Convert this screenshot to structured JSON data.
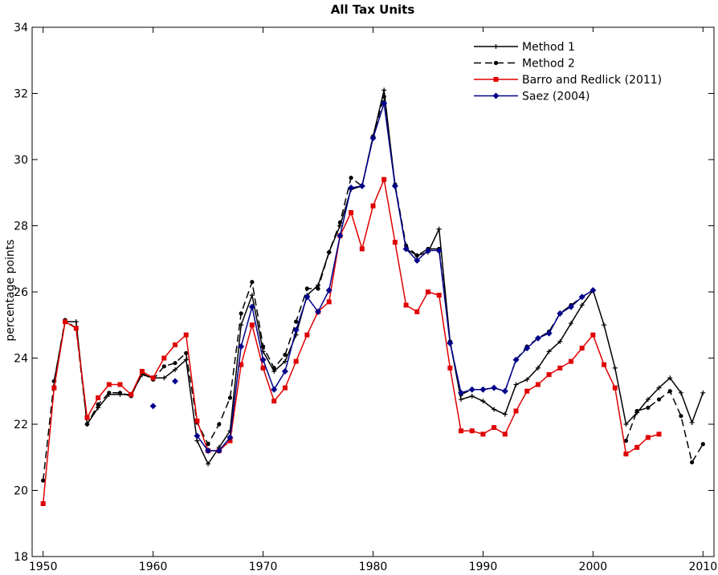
{
  "chart_data": {
    "type": "line",
    "title": "All Tax Units",
    "xlabel": "",
    "ylabel": "percentage points",
    "xlim": [
      1949,
      2011
    ],
    "ylim": [
      18,
      34
    ],
    "xticks": [
      1950,
      1960,
      1970,
      1980,
      1990,
      2000,
      2010
    ],
    "yticks": [
      18,
      20,
      22,
      24,
      26,
      28,
      30,
      32,
      34
    ],
    "grid": false,
    "legend_position": "top-right",
    "series": [
      {
        "name": "Method 1",
        "color": "#000000",
        "dash": "solid",
        "marker": "plus",
        "points": [
          [
            1951,
            23.3
          ],
          [
            1952,
            25.1
          ],
          [
            1953,
            25.1
          ],
          [
            1954,
            22.0
          ],
          [
            1955,
            22.5
          ],
          [
            1956,
            22.9
          ],
          [
            1957,
            22.9
          ],
          [
            1958,
            22.9
          ],
          [
            1959,
            23.5
          ],
          [
            1960,
            23.4
          ],
          [
            1961,
            23.4
          ],
          [
            1962,
            23.65
          ],
          [
            1963,
            23.95
          ],
          [
            1964,
            21.5
          ],
          [
            1965,
            20.8
          ],
          [
            1966,
            21.3
          ],
          [
            1967,
            21.8
          ],
          [
            1968,
            25.0
          ],
          [
            1969,
            25.9
          ],
          [
            1970,
            24.2
          ],
          [
            1971,
            23.6
          ],
          [
            1972,
            23.9
          ],
          [
            1973,
            24.7
          ],
          [
            1974,
            25.9
          ],
          [
            1975,
            26.2
          ],
          [
            1976,
            27.2
          ],
          [
            1977,
            28.0
          ],
          [
            1978,
            29.1
          ],
          [
            1979,
            29.2
          ],
          [
            1980,
            30.7
          ],
          [
            1981,
            32.1
          ],
          [
            1982,
            29.2
          ],
          [
            1983,
            27.3
          ],
          [
            1984,
            27.1
          ],
          [
            1985,
            27.2
          ],
          [
            1986,
            27.9
          ],
          [
            1987,
            24.5
          ],
          [
            1988,
            22.75
          ],
          [
            1989,
            22.85
          ],
          [
            1990,
            22.7
          ],
          [
            1991,
            22.45
          ],
          [
            1992,
            22.3
          ],
          [
            1993,
            23.2
          ],
          [
            1994,
            23.35
          ],
          [
            1995,
            23.7
          ],
          [
            1996,
            24.2
          ],
          [
            1997,
            24.5
          ],
          [
            1998,
            25.05
          ],
          [
            1999,
            25.6
          ],
          [
            2000,
            26.05
          ],
          [
            2001,
            25.0
          ],
          [
            2002,
            23.7
          ],
          [
            2003,
            22.0
          ],
          [
            2004,
            22.35
          ],
          [
            2005,
            22.75
          ],
          [
            2006,
            23.1
          ],
          [
            2007,
            23.4
          ],
          [
            2008,
            22.95
          ],
          [
            2009,
            22.05
          ],
          [
            2010,
            22.95
          ]
        ]
      },
      {
        "name": "Method 2",
        "color": "#000000",
        "dash": "dashed",
        "marker": "dot",
        "points": [
          [
            1950,
            20.3
          ],
          [
            1951,
            23.3
          ],
          [
            1952,
            25.15
          ],
          [
            1953,
            24.9
          ],
          [
            1954,
            22.0
          ],
          [
            1955,
            22.6
          ],
          [
            1956,
            22.95
          ],
          [
            1957,
            22.95
          ],
          [
            1958,
            22.85
          ],
          [
            1959,
            23.55
          ],
          [
            1960,
            23.35
          ],
          [
            1961,
            23.75
          ],
          [
            1962,
            23.85
          ],
          [
            1963,
            24.15
          ],
          [
            1964,
            22.05
          ],
          [
            1965,
            21.4
          ],
          [
            1966,
            22.0
          ],
          [
            1967,
            22.8
          ],
          [
            1968,
            25.35
          ],
          [
            1969,
            26.3
          ],
          [
            1970,
            24.35
          ],
          [
            1971,
            23.7
          ],
          [
            1972,
            24.1
          ],
          [
            1973,
            25.1
          ],
          [
            1974,
            26.1
          ],
          [
            1975,
            26.1
          ],
          [
            1976,
            27.2
          ],
          [
            1977,
            28.1
          ],
          [
            1978,
            29.45
          ],
          [
            1979,
            29.2
          ],
          [
            1980,
            30.7
          ],
          [
            1981,
            31.9
          ],
          [
            1982,
            29.25
          ],
          [
            1983,
            27.4
          ],
          [
            1984,
            27.1
          ],
          [
            1985,
            27.3
          ],
          [
            1986,
            27.3
          ],
          [
            1987,
            24.5
          ],
          [
            1988,
            22.9
          ],
          [
            1989,
            23.05
          ],
          [
            1990,
            23.05
          ],
          [
            1991,
            23.1
          ],
          [
            1992,
            23.0
          ],
          [
            1993,
            23.95
          ],
          [
            1994,
            24.35
          ],
          [
            1995,
            24.6
          ],
          [
            1996,
            24.8
          ],
          [
            1997,
            25.35
          ],
          [
            1998,
            25.6
          ],
          [
            1999,
            25.85
          ],
          [
            2000,
            26.05
          ],
          [
            2003,
            21.5
          ],
          [
            2004,
            22.4
          ],
          [
            2005,
            22.5
          ],
          [
            2006,
            22.75
          ],
          [
            2007,
            23.0
          ],
          [
            2008,
            22.25
          ],
          [
            2009,
            20.85
          ],
          [
            2010,
            21.4
          ]
        ]
      },
      {
        "name": "Barro and Redlick (2011)",
        "color": "#e00000",
        "dash": "solid",
        "marker": "square",
        "points": [
          [
            1950,
            19.6
          ],
          [
            1951,
            23.1
          ],
          [
            1952,
            25.1
          ],
          [
            1953,
            24.9
          ],
          [
            1954,
            22.2
          ],
          [
            1955,
            22.8
          ],
          [
            1956,
            23.2
          ],
          [
            1957,
            23.2
          ],
          [
            1958,
            22.9
          ],
          [
            1959,
            23.6
          ],
          [
            1960,
            23.4
          ],
          [
            1961,
            24.0
          ],
          [
            1962,
            24.4
          ],
          [
            1963,
            24.7
          ],
          [
            1964,
            22.1
          ],
          [
            1965,
            21.2
          ],
          [
            1966,
            21.2
          ],
          [
            1967,
            21.5
          ],
          [
            1968,
            23.8
          ],
          [
            1969,
            25.0
          ],
          [
            1970,
            23.7
          ],
          [
            1971,
            22.7
          ],
          [
            1972,
            23.1
          ],
          [
            1973,
            23.9
          ],
          [
            1974,
            24.7
          ],
          [
            1975,
            25.4
          ],
          [
            1976,
            25.7
          ],
          [
            1977,
            27.7
          ],
          [
            1978,
            28.4
          ],
          [
            1979,
            27.3
          ],
          [
            1980,
            28.6
          ],
          [
            1981,
            29.4
          ],
          [
            1982,
            27.5
          ],
          [
            1983,
            25.6
          ],
          [
            1984,
            25.4
          ],
          [
            1985,
            26.0
          ],
          [
            1986,
            25.9
          ],
          [
            1987,
            23.7
          ],
          [
            1988,
            21.8
          ],
          [
            1989,
            21.8
          ],
          [
            1990,
            21.7
          ],
          [
            1991,
            21.9
          ],
          [
            1992,
            21.7
          ],
          [
            1993,
            22.4
          ],
          [
            1994,
            23.0
          ],
          [
            1995,
            23.2
          ],
          [
            1996,
            23.5
          ],
          [
            1997,
            23.7
          ],
          [
            1998,
            23.9
          ],
          [
            1999,
            24.3
          ],
          [
            2000,
            24.7
          ],
          [
            2001,
            23.8
          ],
          [
            2002,
            23.1
          ],
          [
            2003,
            21.1
          ],
          [
            2004,
            21.3
          ],
          [
            2005,
            21.6
          ],
          [
            2006,
            21.7
          ]
        ]
      },
      {
        "name": "Saez (2004)",
        "color": "#00008b",
        "dash": "solid",
        "marker": "diamond",
        "isolated": [
          [
            1960,
            22.55
          ],
          [
            1962,
            23.3
          ]
        ],
        "points": [
          [
            1964,
            21.65
          ],
          [
            1965,
            21.2
          ],
          [
            1966,
            21.2
          ],
          [
            1967,
            21.6
          ],
          [
            1968,
            24.35
          ],
          [
            1969,
            25.55
          ],
          [
            1970,
            23.95
          ],
          [
            1971,
            23.05
          ],
          [
            1972,
            23.6
          ],
          [
            1973,
            24.85
          ],
          [
            1974,
            25.85
          ],
          [
            1975,
            25.4
          ],
          [
            1976,
            26.05
          ],
          [
            1977,
            27.7
          ],
          [
            1978,
            29.15
          ],
          [
            1979,
            29.2
          ],
          [
            1980,
            30.65
          ],
          [
            1981,
            31.7
          ],
          [
            1982,
            29.2
          ],
          [
            1983,
            27.3
          ],
          [
            1984,
            26.95
          ],
          [
            1985,
            27.25
          ],
          [
            1986,
            27.25
          ],
          [
            1987,
            24.45
          ],
          [
            1988,
            22.95
          ],
          [
            1989,
            23.05
          ],
          [
            1990,
            23.05
          ],
          [
            1991,
            23.1
          ],
          [
            1992,
            23.0
          ],
          [
            1993,
            23.95
          ],
          [
            1994,
            24.3
          ],
          [
            1995,
            24.6
          ],
          [
            1996,
            24.75
          ],
          [
            1997,
            25.35
          ],
          [
            1998,
            25.55
          ],
          [
            1999,
            25.85
          ],
          [
            2000,
            26.05
          ]
        ]
      }
    ]
  }
}
